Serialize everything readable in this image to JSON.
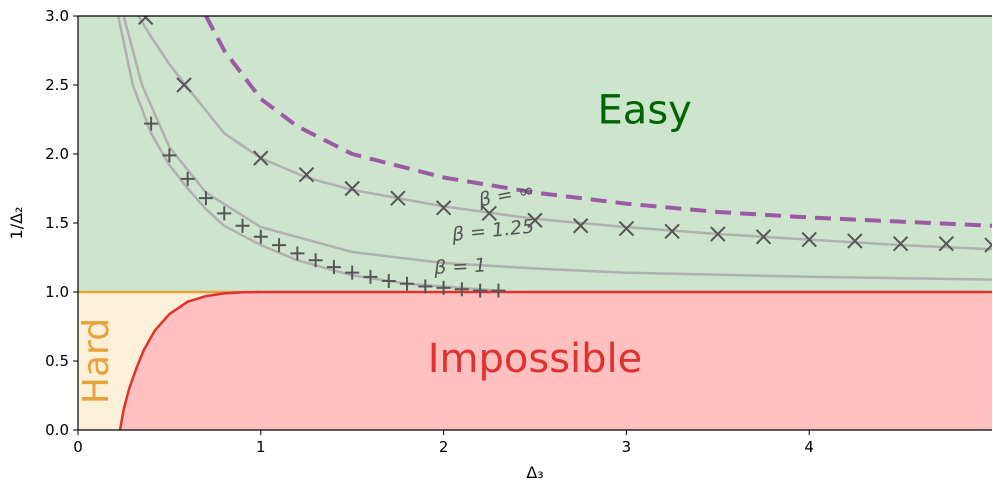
{
  "chart_data": {
    "type": "line",
    "xlabel": "Δ₃",
    "ylabel": "1/Δ₂",
    "xlim": [
      0,
      5
    ],
    "ylim": [
      0,
      3
    ],
    "x_ticks": [
      "0",
      "1",
      "2",
      "3",
      "4"
    ],
    "y_ticks": [
      "0.0",
      "0.5",
      "1.0",
      "1.5",
      "2.0",
      "2.5",
      "3.0"
    ],
    "grid": false,
    "regions": [
      {
        "label": "Easy",
        "color": "#cde5cd",
        "text_color": "#006400"
      },
      {
        "label": "Hard",
        "color": "#fdf0d9",
        "text_color": "#e8a23a"
      },
      {
        "label": "Impossible",
        "color": "#ffc0c0",
        "text_color": "#e03030"
      }
    ],
    "boundaries": {
      "hard_top": {
        "color": "#e8a23a",
        "y": 1.0,
        "x_range": [
          0,
          1.0
        ]
      },
      "impossible": {
        "color": "#e03030",
        "x": [
          0.23,
          0.25,
          0.28,
          0.32,
          0.36,
          0.42,
          0.5,
          0.6,
          0.7,
          0.8,
          0.9,
          1.0,
          2.0,
          5.0
        ],
        "y": [
          0.0,
          0.15,
          0.3,
          0.45,
          0.58,
          0.72,
          0.84,
          0.93,
          0.97,
          0.99,
          0.998,
          1.0,
          1.0,
          1.0
        ]
      }
    },
    "series": [
      {
        "label": "β = 1",
        "style": "solid",
        "color": "#b0b0b0",
        "x": [
          0.22,
          0.3,
          0.4,
          0.5,
          0.6,
          0.7,
          0.8,
          1.0,
          1.2,
          1.5,
          1.8,
          2.3
        ],
        "y": [
          3.0,
          2.5,
          2.15,
          1.92,
          1.75,
          1.6,
          1.48,
          1.34,
          1.23,
          1.12,
          1.06,
          1.01
        ]
      },
      {
        "label": "β = 1.25",
        "style": "solid",
        "color": "#b0b0b0",
        "x": [
          0.25,
          0.35,
          0.5,
          0.7,
          1.0,
          1.5,
          2.0,
          2.5,
          3.0,
          4.0,
          5.0
        ],
        "y": [
          3.0,
          2.5,
          2.05,
          1.72,
          1.47,
          1.29,
          1.21,
          1.17,
          1.14,
          1.11,
          1.09
        ]
      },
      {
        "label": "β = ∞",
        "style": "solid",
        "color": "#b0b0b0",
        "x": [
          0.33,
          0.4,
          0.5,
          0.6,
          0.8,
          1.0,
          1.25,
          1.5,
          2.0,
          2.5,
          3.0,
          3.5,
          4.0,
          4.5,
          5.0
        ],
        "y": [
          3.0,
          2.85,
          2.65,
          2.48,
          2.15,
          1.97,
          1.83,
          1.74,
          1.62,
          1.53,
          1.47,
          1.42,
          1.38,
          1.34,
          1.31
        ]
      },
      {
        "label": "",
        "style": "dashed",
        "color": "#9b59a6",
        "x": [
          0.7,
          0.8,
          1.0,
          1.2,
          1.5,
          2.0,
          2.5,
          3.0,
          3.5,
          4.0,
          4.5,
          5.0
        ],
        "y": [
          3.0,
          2.75,
          2.4,
          2.2,
          2.0,
          1.83,
          1.72,
          1.64,
          1.58,
          1.54,
          1.51,
          1.48
        ]
      }
    ],
    "markers": [
      {
        "shape": "plus",
        "color": "#555555",
        "x": [
          0.4,
          0.5,
          0.6,
          0.7,
          0.8,
          0.9,
          1.0,
          1.1,
          1.2,
          1.3,
          1.4,
          1.5,
          1.6,
          1.7,
          1.8,
          1.9,
          2.0,
          2.1,
          2.2,
          2.3
        ],
        "y": [
          2.22,
          1.99,
          1.82,
          1.68,
          1.57,
          1.48,
          1.4,
          1.34,
          1.28,
          1.23,
          1.18,
          1.14,
          1.11,
          1.08,
          1.06,
          1.04,
          1.03,
          1.02,
          1.01,
          1.01
        ]
      },
      {
        "shape": "cross",
        "color": "#555555",
        "x": [
          0.37,
          0.58,
          1.0,
          1.25,
          1.5,
          1.75,
          2.0,
          2.25,
          2.5,
          2.75,
          3.0,
          3.25,
          3.5,
          3.75,
          4.0,
          4.25,
          4.5,
          4.75,
          5.0
        ],
        "y": [
          2.99,
          2.5,
          1.97,
          1.85,
          1.75,
          1.68,
          1.61,
          1.57,
          1.52,
          1.48,
          1.46,
          1.44,
          1.42,
          1.4,
          1.38,
          1.37,
          1.35,
          1.35,
          1.34
        ]
      }
    ],
    "annotations": [
      {
        "text": "β = ∞",
        "x": 2.2,
        "y": 1.62,
        "rotation": -11
      },
      {
        "text": "β = 1.25",
        "x": 2.05,
        "y": 1.37,
        "rotation": -6
      },
      {
        "text": "β = 1",
        "x": 1.95,
        "y": 1.13,
        "rotation": -3
      }
    ]
  }
}
